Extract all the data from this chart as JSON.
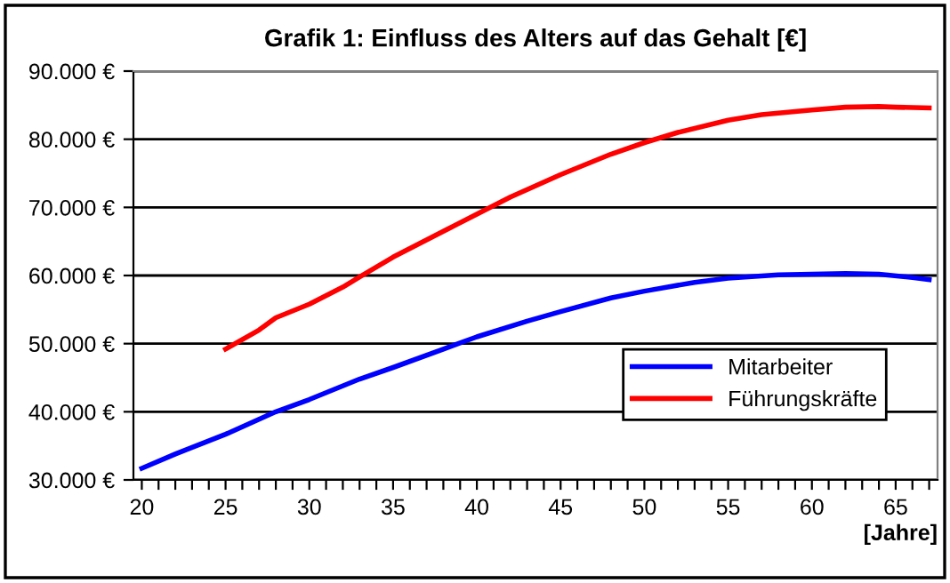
{
  "chart_data": {
    "type": "line",
    "title": "Grafik 1: Einfluss des Alters auf das Gehalt [€]",
    "xlabel": "[Jahre]",
    "xlim": [
      19.5,
      67.5
    ],
    "xticks": [
      20,
      {
        "value": 21,
        "label": null
      },
      {
        "value": 22,
        "label": null
      },
      {
        "value": 23,
        "label": null
      },
      {
        "value": 24,
        "label": null
      },
      25,
      {
        "value": 26,
        "label": null
      },
      {
        "value": 27,
        "label": null
      },
      {
        "value": 28,
        "label": null
      },
      {
        "value": 29,
        "label": null
      },
      30,
      {
        "value": 31,
        "label": null
      },
      {
        "value": 32,
        "label": null
      },
      {
        "value": 33,
        "label": null
      },
      {
        "value": 34,
        "label": null
      },
      35,
      {
        "value": 36,
        "label": null
      },
      {
        "value": 37,
        "label": null
      },
      {
        "value": 38,
        "label": null
      },
      {
        "value": 39,
        "label": null
      },
      40,
      {
        "value": 41,
        "label": null
      },
      {
        "value": 42,
        "label": null
      },
      {
        "value": 43,
        "label": null
      },
      {
        "value": 44,
        "label": null
      },
      45,
      {
        "value": 46,
        "label": null
      },
      {
        "value": 47,
        "label": null
      },
      {
        "value": 48,
        "label": null
      },
      {
        "value": 49,
        "label": null
      },
      50,
      {
        "value": 51,
        "label": null
      },
      {
        "value": 52,
        "label": null
      },
      {
        "value": 53,
        "label": null
      },
      {
        "value": 54,
        "label": null
      },
      55,
      {
        "value": 56,
        "label": null
      },
      {
        "value": 57,
        "label": null
      },
      {
        "value": 58,
        "label": null
      },
      {
        "value": 59,
        "label": null
      },
      60,
      {
        "value": 61,
        "label": null
      },
      {
        "value": 62,
        "label": null
      },
      {
        "value": 63,
        "label": null
      },
      {
        "value": 64,
        "label": null
      },
      65,
      {
        "value": 66,
        "label": null
      },
      {
        "value": 67,
        "label": null
      }
    ],
    "ylim": [
      30000,
      90000
    ],
    "yticks": [
      {
        "value": 30000,
        "label": "30.000 €"
      },
      {
        "value": 40000,
        "label": "40.000 €"
      },
      {
        "value": 50000,
        "label": "50.000 €"
      },
      {
        "value": 60000,
        "label": "60.000 €"
      },
      {
        "value": 70000,
        "label": "70.000 €"
      },
      {
        "value": 80000,
        "label": "80.000 €"
      },
      {
        "value": 90000,
        "label": "90.000 €"
      }
    ],
    "grid": "y",
    "legend": "bottom right",
    "marker": "none",
    "line_style": "solid",
    "series": [
      {
        "name": "Mitarbeiter",
        "color": "#0000ff",
        "x": [
          20,
          22,
          25,
          28,
          30,
          33,
          35,
          38,
          40,
          43,
          45,
          48,
          50,
          53,
          55,
          58,
          60,
          62,
          64,
          66,
          67
        ],
        "values": [
          31700,
          33800,
          36700,
          40000,
          41800,
          44800,
          46500,
          49200,
          51000,
          53300,
          54700,
          56700,
          57700,
          59000,
          59600,
          60100,
          60200,
          60300,
          60200,
          59700,
          59400
        ]
      },
      {
        "name": "Führungskräfte",
        "color": "#ff0000",
        "x": [
          25,
          27,
          28,
          30,
          32,
          33,
          35,
          38,
          40,
          42,
          45,
          48,
          50,
          52,
          55,
          57,
          60,
          62,
          64,
          65,
          67
        ],
        "values": [
          49200,
          52000,
          53800,
          55800,
          58300,
          59800,
          62700,
          66500,
          69000,
          71500,
          74800,
          77800,
          79500,
          81000,
          82800,
          83600,
          84300,
          84700,
          84800,
          84700,
          84600
        ]
      }
    ]
  }
}
